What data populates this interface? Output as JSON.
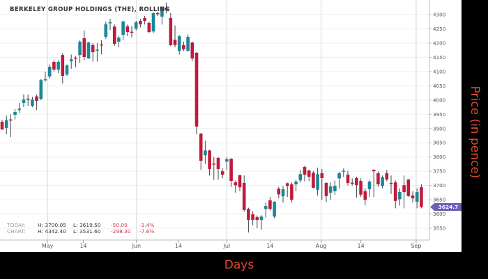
{
  "chart_data": {
    "type": "candlestick",
    "title": "BERKELEY GROUP HOLDINGS (THE), ROLLING",
    "xlabel": "Days",
    "ylabel": "Price (in pence)",
    "ylim": [
      3520,
      4345
    ],
    "y_ticks": [
      3550,
      3600,
      3650,
      3700,
      3750,
      3800,
      3850,
      3900,
      3950,
      4000,
      4050,
      4100,
      4150,
      4200,
      4250,
      4300
    ],
    "x_ticks": [
      {
        "label": "May",
        "index": 10.5,
        "gridline": true
      },
      {
        "label": "14",
        "index": 18.8,
        "gridline": false
      },
      {
        "label": "Jun",
        "index": 31.1,
        "gridline": true
      },
      {
        "label": "14",
        "index": 40.8,
        "gridline": false
      },
      {
        "label": "Jul",
        "index": 52,
        "gridline": true
      },
      {
        "label": "14",
        "index": 62,
        "gridline": false
      },
      {
        "label": "Aug",
        "index": 73.8,
        "gridline": true
      },
      {
        "label": "14",
        "index": 83,
        "gridline": false
      },
      {
        "label": "Sep",
        "index": 95.8,
        "gridline": true
      }
    ],
    "grid": true,
    "current_price": "3624.7",
    "colors": {
      "up": "#1b8797",
      "down": "#c11a3b",
      "price_tag": "#6c5fb5",
      "axis_title": "#e2492f"
    },
    "ohlc": [
      [
        3924,
        3930,
        3895,
        3897
      ],
      [
        3902,
        3945,
        3880,
        3929
      ],
      [
        3932,
        3950,
        3870,
        3928
      ],
      [
        3948,
        3968,
        3932,
        3958
      ],
      [
        3965,
        3990,
        3955,
        3970
      ],
      [
        3990,
        4020,
        3975,
        4002
      ],
      [
        4005,
        4020,
        3980,
        4002
      ],
      [
        3980,
        4012,
        3975,
        4002
      ],
      [
        4013,
        4020,
        3965,
        3997
      ],
      [
        4004,
        4075,
        4000,
        4070
      ],
      [
        4070,
        4100,
        4065,
        4073
      ],
      [
        4083,
        4125,
        4075,
        4117
      ],
      [
        4134,
        4140,
        4100,
        4107
      ],
      [
        4107,
        4140,
        4095,
        4134
      ],
      [
        4158,
        4165,
        4058,
        4085
      ],
      [
        4090,
        4125,
        4085,
        4122
      ],
      [
        4136,
        4160,
        4110,
        4143
      ],
      [
        4149,
        4155,
        4115,
        4146
      ],
      [
        4158,
        4210,
        4130,
        4205
      ],
      [
        4217,
        4245,
        4140,
        4151
      ],
      [
        4146,
        4205,
        4145,
        4202
      ],
      [
        4193,
        4200,
        4135,
        4168
      ],
      [
        4175,
        4200,
        4135,
        4177
      ],
      [
        4195,
        4210,
        4160,
        4192
      ],
      [
        4222,
        4275,
        4215,
        4266
      ],
      [
        4271,
        4285,
        4245,
        4273
      ],
      [
        4258,
        4265,
        4190,
        4197
      ],
      [
        4205,
        4225,
        4185,
        4219
      ],
      [
        4229,
        4278,
        4210,
        4276
      ],
      [
        4259,
        4265,
        4225,
        4239
      ],
      [
        4240,
        4260,
        4220,
        4237
      ],
      [
        4251,
        4278,
        4245,
        4273
      ],
      [
        4278,
        4285,
        4255,
        4266
      ],
      [
        4288,
        4295,
        4265,
        4278
      ],
      [
        4271,
        4275,
        4235,
        4239
      ],
      [
        4241,
        4308,
        4235,
        4305
      ],
      [
        4305,
        4310,
        4295,
        4302
      ],
      [
        4293,
        4330,
        4265,
        4327
      ],
      [
        4322,
        4342,
        4305,
        4317
      ],
      [
        4288,
        4305,
        4190,
        4193
      ],
      [
        4212,
        4262,
        4185,
        4193
      ],
      [
        4173,
        4228,
        4160,
        4224
      ],
      [
        4193,
        4205,
        4172,
        4178
      ],
      [
        4173,
        4230,
        4170,
        4222
      ],
      [
        4202,
        4205,
        4137,
        4146
      ],
      [
        4166,
        4168,
        3880,
        3907
      ],
      [
        3882,
        3885,
        3755,
        3787
      ],
      [
        3806,
        3857,
        3775,
        3823
      ],
      [
        3823,
        3825,
        3735,
        3758
      ],
      [
        3777,
        3800,
        3720,
        3774
      ],
      [
        3797,
        3800,
        3720,
        3758
      ],
      [
        3750,
        3760,
        3725,
        3738
      ],
      [
        3784,
        3800,
        3755,
        3792
      ],
      [
        3794,
        3796,
        3695,
        3716
      ],
      [
        3711,
        3718,
        3675,
        3701
      ],
      [
        3736,
        3738,
        3680,
        3694
      ],
      [
        3709,
        3735,
        3608,
        3614
      ],
      [
        3618,
        3622,
        3535,
        3579
      ],
      [
        3599,
        3610,
        3560,
        3579
      ],
      [
        3589,
        3595,
        3550,
        3579
      ],
      [
        3579,
        3596,
        3545,
        3591
      ],
      [
        3618,
        3640,
        3588,
        3628
      ],
      [
        3648,
        3660,
        3612,
        3618
      ],
      [
        3591,
        3645,
        3585,
        3643
      ],
      [
        3689,
        3695,
        3655,
        3669
      ],
      [
        3662,
        3698,
        3640,
        3687
      ],
      [
        3708,
        3710,
        3660,
        3699
      ],
      [
        3704,
        3711,
        3640,
        3650
      ],
      [
        3704,
        3720,
        3680,
        3714
      ],
      [
        3718,
        3755,
        3710,
        3740
      ],
      [
        3765,
        3770,
        3715,
        3738
      ],
      [
        3753,
        3755,
        3715,
        3731
      ],
      [
        3745,
        3750,
        3690,
        3692
      ],
      [
        3685,
        3763,
        3665,
        3740
      ],
      [
        3743,
        3758,
        3650,
        3726
      ],
      [
        3709,
        3712,
        3643,
        3663
      ],
      [
        3675,
        3711,
        3650,
        3697
      ],
      [
        3680,
        3718,
        3667,
        3699
      ],
      [
        3725,
        3748,
        3690,
        3743
      ],
      [
        3751,
        3760,
        3730,
        3752
      ],
      [
        3738,
        3752,
        3700,
        3709
      ],
      [
        3710,
        3725,
        3700,
        3706
      ],
      [
        3726,
        3731,
        3658,
        3701
      ],
      [
        3716,
        3725,
        3660,
        3668
      ],
      [
        3680,
        3690,
        3630,
        3650
      ],
      [
        3687,
        3718,
        3660,
        3714
      ],
      [
        3755,
        3757,
        3660,
        3750
      ],
      [
        3743,
        3750,
        3695,
        3704
      ],
      [
        3699,
        3735,
        3690,
        3729
      ],
      [
        3743,
        3755,
        3715,
        3721
      ],
      [
        3709,
        3735,
        3670,
        3706
      ],
      [
        3711,
        3718,
        3620,
        3646
      ],
      [
        3652,
        3690,
        3630,
        3677
      ],
      [
        3701,
        3735,
        3620,
        3677
      ],
      [
        3721,
        3723,
        3660,
        3663
      ],
      [
        3665,
        3680,
        3640,
        3655
      ],
      [
        3643,
        3690,
        3620,
        3677
      ],
      [
        3694,
        3705,
        3620,
        3625
      ]
    ]
  },
  "info": {
    "today_label": "TODAY:",
    "today_high": "H: 3700.05",
    "today_low": "L: 3619.50",
    "today_change": "-50.00",
    "today_pct": "-1.4%",
    "chart_label": "CHART:",
    "chart_high": "H: 4342.40",
    "chart_low": "L: 3531.60",
    "chart_change": "-298.30",
    "chart_pct": "-7.6%"
  }
}
